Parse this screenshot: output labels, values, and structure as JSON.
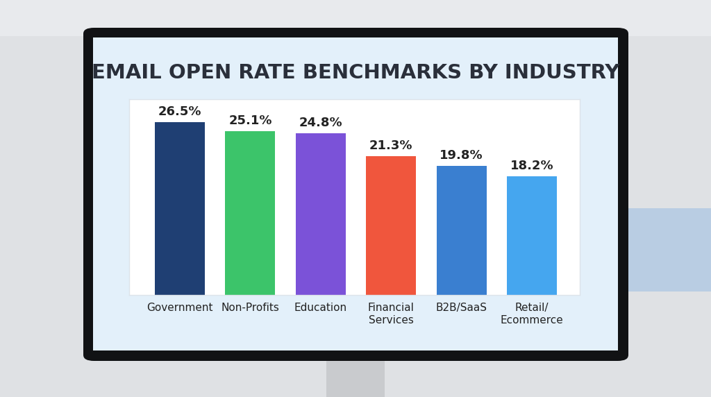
{
  "chart_data": {
    "type": "bar",
    "title": "EMAIL OPEN RATE BENCHMARKS BY INDUSTRY",
    "categories": [
      "Government",
      "Non-Profits",
      "Education",
      "Financial\nServices",
      "B2B/SaaS",
      "Retail/\nEcommerce"
    ],
    "values": [
      26.5,
      25.1,
      24.8,
      21.3,
      19.8,
      18.2
    ],
    "value_labels": [
      "26.5%",
      "25.1%",
      "24.8%",
      "21.3%",
      "19.8%",
      "18.2%"
    ],
    "colors": [
      "#1f3f73",
      "#3cc46a",
      "#7b52d8",
      "#f0563d",
      "#3a7fd0",
      "#45a6ef"
    ],
    "ylim": [
      0,
      30
    ],
    "yticks": [],
    "grid": false,
    "data_labels": true,
    "tick_labels": "x"
  }
}
